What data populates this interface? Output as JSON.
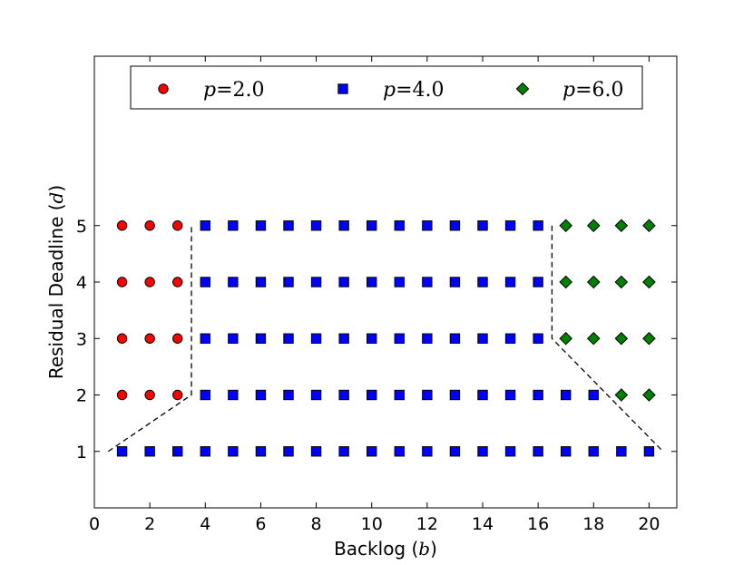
{
  "chart_data": {
    "type": "scatter",
    "xlabel": {
      "prefix": "Backlog (",
      "var": "b",
      "suffix": ")"
    },
    "ylabel": {
      "prefix": "Residual Deadline (",
      "var": "d",
      "suffix": ")"
    },
    "xlim": [
      0,
      21
    ],
    "ylim": [
      0,
      8
    ],
    "x_ticks": [
      0,
      2,
      4,
      6,
      8,
      10,
      12,
      14,
      16,
      18,
      20
    ],
    "x_tick_labels": [
      "0",
      "2",
      "4",
      "6",
      "8",
      "10",
      "12",
      "14",
      "16",
      "18",
      "20"
    ],
    "y_ticks": [
      1,
      2,
      3,
      4,
      5
    ],
    "y_tick_labels": [
      "1",
      "2",
      "3",
      "4",
      "5"
    ],
    "grid": false,
    "legend_position": "top",
    "series": [
      {
        "name": "p=2.0",
        "legend_var": "p",
        "legend_value": "=2.0",
        "marker": "circle",
        "color": "#ff0000",
        "points": [
          [
            1,
            2
          ],
          [
            2,
            2
          ],
          [
            3,
            2
          ],
          [
            1,
            3
          ],
          [
            2,
            3
          ],
          [
            3,
            3
          ],
          [
            1,
            4
          ],
          [
            2,
            4
          ],
          [
            3,
            4
          ],
          [
            1,
            5
          ],
          [
            2,
            5
          ],
          [
            3,
            5
          ]
        ]
      },
      {
        "name": "p=4.0",
        "legend_var": "p",
        "legend_value": "=4.0",
        "marker": "square",
        "color": "#0000ff",
        "points": [
          [
            1,
            1
          ],
          [
            2,
            1
          ],
          [
            3,
            1
          ],
          [
            4,
            1
          ],
          [
            5,
            1
          ],
          [
            6,
            1
          ],
          [
            7,
            1
          ],
          [
            8,
            1
          ],
          [
            9,
            1
          ],
          [
            10,
            1
          ],
          [
            11,
            1
          ],
          [
            12,
            1
          ],
          [
            13,
            1
          ],
          [
            14,
            1
          ],
          [
            15,
            1
          ],
          [
            16,
            1
          ],
          [
            17,
            1
          ],
          [
            18,
            1
          ],
          [
            19,
            1
          ],
          [
            20,
            1
          ],
          [
            4,
            2
          ],
          [
            5,
            2
          ],
          [
            6,
            2
          ],
          [
            7,
            2
          ],
          [
            8,
            2
          ],
          [
            9,
            2
          ],
          [
            10,
            2
          ],
          [
            11,
            2
          ],
          [
            12,
            2
          ],
          [
            13,
            2
          ],
          [
            14,
            2
          ],
          [
            15,
            2
          ],
          [
            16,
            2
          ],
          [
            17,
            2
          ],
          [
            18,
            2
          ],
          [
            4,
            3
          ],
          [
            5,
            3
          ],
          [
            6,
            3
          ],
          [
            7,
            3
          ],
          [
            8,
            3
          ],
          [
            9,
            3
          ],
          [
            10,
            3
          ],
          [
            11,
            3
          ],
          [
            12,
            3
          ],
          [
            13,
            3
          ],
          [
            14,
            3
          ],
          [
            15,
            3
          ],
          [
            16,
            3
          ],
          [
            4,
            4
          ],
          [
            5,
            4
          ],
          [
            6,
            4
          ],
          [
            7,
            4
          ],
          [
            8,
            4
          ],
          [
            9,
            4
          ],
          [
            10,
            4
          ],
          [
            11,
            4
          ],
          [
            12,
            4
          ],
          [
            13,
            4
          ],
          [
            14,
            4
          ],
          [
            15,
            4
          ],
          [
            16,
            4
          ],
          [
            4,
            5
          ],
          [
            5,
            5
          ],
          [
            6,
            5
          ],
          [
            7,
            5
          ],
          [
            8,
            5
          ],
          [
            9,
            5
          ],
          [
            10,
            5
          ],
          [
            11,
            5
          ],
          [
            12,
            5
          ],
          [
            13,
            5
          ],
          [
            14,
            5
          ],
          [
            15,
            5
          ],
          [
            16,
            5
          ]
        ]
      },
      {
        "name": "p=6.0",
        "legend_var": "p",
        "legend_value": "=6.0",
        "marker": "diamond",
        "color": "#008000",
        "points": [
          [
            19,
            2
          ],
          [
            20,
            2
          ],
          [
            17,
            3
          ],
          [
            18,
            3
          ],
          [
            19,
            3
          ],
          [
            20,
            3
          ],
          [
            17,
            4
          ],
          [
            18,
            4
          ],
          [
            19,
            4
          ],
          [
            20,
            4
          ],
          [
            17,
            5
          ],
          [
            18,
            5
          ],
          [
            19,
            5
          ],
          [
            20,
            5
          ]
        ]
      }
    ],
    "boundaries": [
      {
        "style": "dashed",
        "points": [
          [
            0.5,
            1
          ],
          [
            3.5,
            2
          ],
          [
            3.5,
            5
          ]
        ]
      },
      {
        "style": "dashed",
        "points": [
          [
            16.5,
            5
          ],
          [
            16.5,
            3
          ],
          [
            18.5,
            2
          ],
          [
            20.5,
            1
          ]
        ]
      }
    ]
  }
}
